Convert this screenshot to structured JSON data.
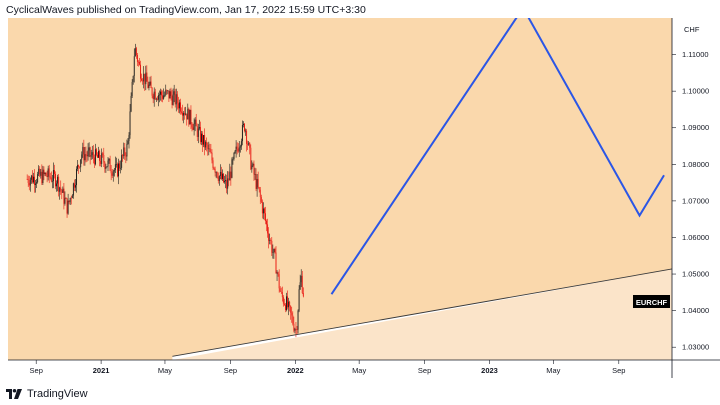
{
  "header": {
    "text": "CyclicalWaves published on TradingView.com, Jan 17, 2022 15:59 UTC+3:30"
  },
  "footer": {
    "brand": "TradingView",
    "logo_icon": "tradingview-logo-icon"
  },
  "colors": {
    "upper_fill": "#fad8ac",
    "lower_fill": "#fbe4c9",
    "candle_down": "#e8140f",
    "candle_up": "#1a1a1a",
    "projection_line": "#2b56e6",
    "trend_line": "#3a3a3a",
    "symbol_badge_bg": "#000000",
    "symbol_badge_text": "#ffffff"
  },
  "chart_data": {
    "type": "candlestick",
    "symbol": "EURCHF",
    "currency": "CHF",
    "y_axis": {
      "ticks": [
        "1.11000",
        "1.10000",
        "1.09000",
        "1.08000",
        "1.07000",
        "1.06000",
        "1.05000",
        "1.04000",
        "1.03000"
      ],
      "tick_values": [
        1.11,
        1.1,
        1.09,
        1.08,
        1.07,
        1.06,
        1.05,
        1.04,
        1.03
      ],
      "range": [
        1.0265,
        1.12
      ]
    },
    "x_axis": {
      "ticks": [
        {
          "label": "Sep",
          "bold": false
        },
        {
          "label": "2021",
          "bold": true
        },
        {
          "label": "May",
          "bold": false
        },
        {
          "label": "Sep",
          "bold": false
        },
        {
          "label": "2022",
          "bold": true
        },
        {
          "label": "May",
          "bold": false
        },
        {
          "label": "Sep",
          "bold": false
        },
        {
          "label": "2023",
          "bold": true
        },
        {
          "label": "May",
          "bold": false
        },
        {
          "label": "Sep",
          "bold": false
        }
      ]
    },
    "price_path": [
      {
        "t": "2020-08-15",
        "price": 1.076
      },
      {
        "t": "2020-09-20",
        "price": 1.077
      },
      {
        "t": "2020-10-10",
        "price": 1.076
      },
      {
        "t": "2020-10-30",
        "price": 1.068
      },
      {
        "t": "2020-11-25",
        "price": 1.083
      },
      {
        "t": "2020-12-20",
        "price": 1.082
      },
      {
        "t": "2021-01-05",
        "price": 1.081
      },
      {
        "t": "2021-01-30",
        "price": 1.078
      },
      {
        "t": "2021-02-20",
        "price": 1.085
      },
      {
        "t": "2021-03-01",
        "price": 1.102
      },
      {
        "t": "2021-03-05",
        "price": 1.112
      },
      {
        "t": "2021-03-15",
        "price": 1.106
      },
      {
        "t": "2021-04-05",
        "price": 1.1
      },
      {
        "t": "2021-04-25",
        "price": 1.099
      },
      {
        "t": "2021-05-10",
        "price": 1.099
      },
      {
        "t": "2021-06-01",
        "price": 1.096
      },
      {
        "t": "2021-06-20",
        "price": 1.092
      },
      {
        "t": "2021-07-20",
        "price": 1.084
      },
      {
        "t": "2021-08-10",
        "price": 1.077
      },
      {
        "t": "2021-08-25",
        "price": 1.074
      },
      {
        "t": "2021-09-15",
        "price": 1.085
      },
      {
        "t": "2021-09-28",
        "price": 1.091
      },
      {
        "t": "2021-10-10",
        "price": 1.08
      },
      {
        "t": "2021-10-25",
        "price": 1.072
      },
      {
        "t": "2021-11-10",
        "price": 1.062
      },
      {
        "t": "2021-11-25",
        "price": 1.053
      },
      {
        "t": "2021-12-05",
        "price": 1.044
      },
      {
        "t": "2021-12-15",
        "price": 1.042
      },
      {
        "t": "2021-12-25",
        "price": 1.038
      },
      {
        "t": "2022-01-03",
        "price": 1.0345
      },
      {
        "t": "2022-01-08",
        "price": 1.045
      },
      {
        "t": "2022-01-12",
        "price": 1.049
      },
      {
        "t": "2022-01-17",
        "price": 1.044
      }
    ],
    "projection": [
      {
        "t": "2022-03-10",
        "price": 1.0445
      },
      {
        "t": "2023-02-25",
        "price": 1.121
      },
      {
        "t": "2023-03-10",
        "price": 1.1215
      },
      {
        "t": "2023-10-10",
        "price": 1.066
      },
      {
        "t": "2023-11-25",
        "price": 1.077
      }
    ],
    "trendline": [
      {
        "t": "2021-05-15",
        "price": 1.0275
      },
      {
        "t": "2023-11-25",
        "price": 1.051
      }
    ],
    "last_price": 1.044,
    "grid": false,
    "legend": "none"
  }
}
